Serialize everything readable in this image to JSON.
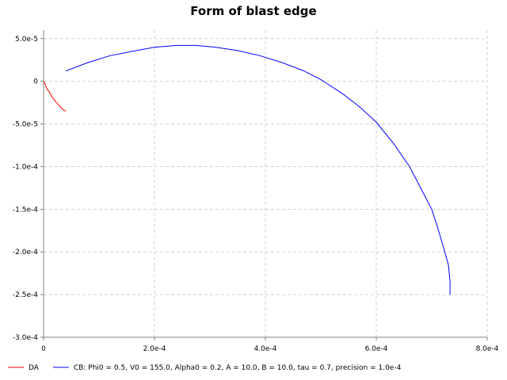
{
  "chart_data": {
    "type": "line",
    "title": "Form of blast edge",
    "xlabel": "",
    "ylabel": "",
    "xlim": [
      0,
      0.0008
    ],
    "ylim": [
      -0.0003,
      6e-05
    ],
    "grid": true,
    "legend_position": "bottom",
    "x_ticks": [
      {
        "value": 0,
        "label": "0"
      },
      {
        "value": 0.0002,
        "label": "2.0e-4"
      },
      {
        "value": 0.0004,
        "label": "4.0e-4"
      },
      {
        "value": 0.0006,
        "label": "6.0e-4"
      },
      {
        "value": 0.0008,
        "label": "8.0e-4"
      }
    ],
    "y_ticks": [
      {
        "value": 5e-05,
        "label": "5.0e-5"
      },
      {
        "value": 0,
        "label": "0"
      },
      {
        "value": -5e-05,
        "label": "-5.0e-5"
      },
      {
        "value": -0.0001,
        "label": "-1.0e-4"
      },
      {
        "value": -0.00015,
        "label": "-1.5e-4"
      },
      {
        "value": -0.0002,
        "label": "-2.0e-4"
      },
      {
        "value": -0.00025,
        "label": "-2.5e-4"
      },
      {
        "value": -0.0003,
        "label": "-3.0e-4"
      }
    ],
    "series": [
      {
        "name": "DA",
        "color": "#ff0000",
        "points": [
          [
            0.0,
            0.0
          ],
          [
            2e-06,
            -2e-06
          ],
          [
            4e-06,
            -6e-06
          ],
          [
            7e-06,
            -1e-05
          ],
          [
            1e-05,
            -1.2e-05
          ],
          [
            1.3e-05,
            -1.6e-05
          ],
          [
            1.7e-05,
            -2e-05
          ],
          [
            2e-05,
            -2.2e-05
          ],
          [
            2.3e-05,
            -2.5e-05
          ],
          [
            2.6e-05,
            -2.7e-05
          ],
          [
            3e-05,
            -3e-05
          ],
          [
            3.3e-05,
            -3.2e-05
          ],
          [
            3.7e-05,
            -3.4e-05
          ],
          [
            4e-05,
            -3.5e-05
          ]
        ]
      },
      {
        "name": "CB: Phi0 = 0.5, V0 = 155.0, Alpha0 = 0.2, A = 10.0, B = 10.0, tau = 0.7, precision = 1.0e-4",
        "color": "#0000ff",
        "points": [
          [
            4e-05,
            1.2e-05
          ],
          [
            8e-05,
            2.2e-05
          ],
          [
            0.00012,
            3e-05
          ],
          [
            0.00016,
            3.5e-05
          ],
          [
            0.0002,
            4e-05
          ],
          [
            0.00024,
            4.2e-05
          ],
          [
            0.000275,
            4.2e-05
          ],
          [
            0.00031,
            4e-05
          ],
          [
            0.00035,
            3.6e-05
          ],
          [
            0.00039,
            3e-05
          ],
          [
            0.00043,
            2.2e-05
          ],
          [
            0.00047,
            1.2e-05
          ],
          [
            0.0005,
            2e-06
          ],
          [
            0.00054,
            -1.5e-05
          ],
          [
            0.00057,
            -3e-05
          ],
          [
            0.0006,
            -4.8e-05
          ],
          [
            0.00063,
            -7.2e-05
          ],
          [
            0.00066,
            -0.0001
          ],
          [
            0.00068,
            -0.000125
          ],
          [
            0.0007,
            -0.00015
          ],
          [
            0.00071,
            -0.00017
          ],
          [
            0.00072,
            -0.000192
          ],
          [
            0.00073,
            -0.000215
          ],
          [
            0.000733,
            -0.000235
          ],
          [
            0.000733,
            -0.00025
          ]
        ]
      }
    ]
  }
}
